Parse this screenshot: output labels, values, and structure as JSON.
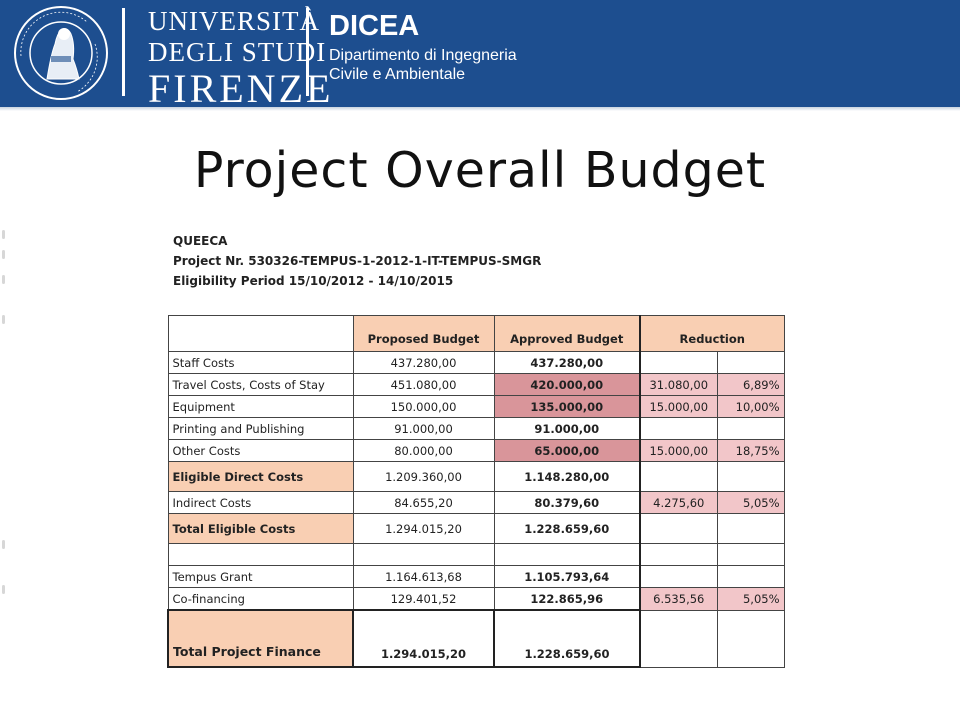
{
  "header": {
    "seal_text": "FLORENTINA STUDIORUM UNIVERSITAS",
    "university_line1": "UNIVERSITÀ",
    "university_line2": "DEGLI STUDI",
    "university_line3": "FIRENZE",
    "dept_acronym": "DICEA",
    "dept_line1": "Dipartimento di Ingegneria",
    "dept_line2": "Civile e Ambientale",
    "band_color": "#1d4e8f"
  },
  "slide_title": "Project Overall Budget",
  "project_info": {
    "line1": "QUEECA",
    "line2": "Project Nr. 530326-TEMPUS-1-2012-1-IT-TEMPUS-SMGR",
    "line3": "Eligibility Period 15/10/2012 - 14/10/2015"
  },
  "table": {
    "headers": {
      "label": "",
      "proposed": "Proposed Budget",
      "approved": "Approved Budget",
      "reduction": "Reduction"
    },
    "rows": [
      {
        "label": "Staff Costs",
        "proposed": "437.280,00",
        "approved": "437.280,00",
        "reduction_amount": "",
        "reduction_pct": ""
      },
      {
        "label": "Travel Costs, Costs of Stay",
        "proposed": "451.080,00",
        "approved": "420.000,00",
        "reduction_amount": "31.080,00",
        "reduction_pct": "6,89%"
      },
      {
        "label": "Equipment",
        "proposed": "150.000,00",
        "approved": "135.000,00",
        "reduction_amount": "15.000,00",
        "reduction_pct": "10,00%"
      },
      {
        "label": "Printing and Publishing",
        "proposed": "91.000,00",
        "approved": "91.000,00",
        "reduction_amount": "",
        "reduction_pct": ""
      },
      {
        "label": "Other Costs",
        "proposed": "80.000,00",
        "approved": "65.000,00",
        "reduction_amount": "15.000,00",
        "reduction_pct": "18,75%"
      },
      {
        "label": "Eligible Direct Costs",
        "proposed": "1.209.360,00",
        "approved": "1.148.280,00",
        "reduction_amount": "",
        "reduction_pct": ""
      },
      {
        "label": "Indirect Costs",
        "proposed": "84.655,20",
        "approved": "80.379,60",
        "reduction_amount": "4.275,60",
        "reduction_pct": "5,05%"
      },
      {
        "label": "Total Eligible Costs",
        "proposed": "1.294.015,20",
        "approved": "1.228.659,60",
        "reduction_amount": "",
        "reduction_pct": ""
      },
      {
        "label": "",
        "proposed": "",
        "approved": "",
        "reduction_amount": "",
        "reduction_pct": ""
      },
      {
        "label": "Tempus Grant",
        "proposed": "1.164.613,68",
        "approved": "1.105.793,64",
        "reduction_amount": "",
        "reduction_pct": ""
      },
      {
        "label": "Co-financing",
        "proposed": "129.401,52",
        "approved": "122.865,96",
        "reduction_amount": "6.535,56",
        "reduction_pct": "5,05%"
      },
      {
        "label": "Total Project Finance",
        "proposed": "1.294.015,20",
        "approved": "1.228.659,60",
        "reduction_amount": "",
        "reduction_pct": ""
      }
    ]
  },
  "colors": {
    "header_fill": "#f9cfb3",
    "reduced_fill": "#d9959a",
    "reduction_fill": "#f2c6c9"
  }
}
